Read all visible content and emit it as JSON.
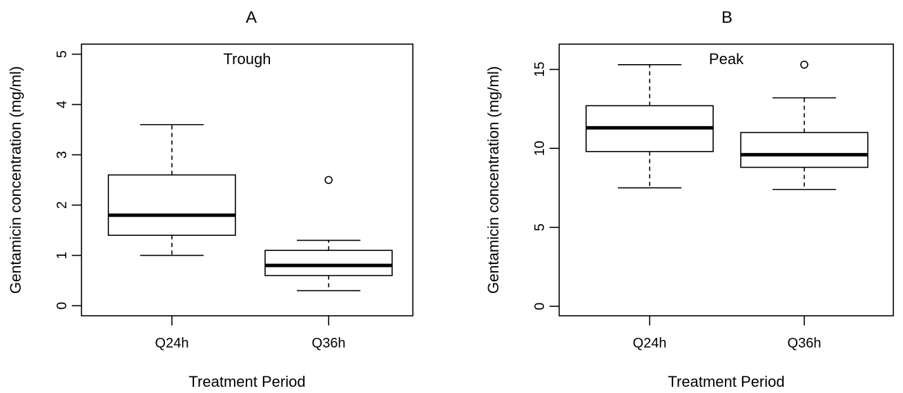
{
  "chart_data": [
    {
      "type": "box",
      "title": "A",
      "inner_label": "Trough",
      "xlabel": "Treatment Period",
      "ylabel": "Gentamicin concentration (mg/ml)",
      "ylim": [
        -0.2,
        5.2
      ],
      "yticks": [
        0,
        1,
        2,
        3,
        4,
        5
      ],
      "categories": [
        "Q24h",
        "Q36h"
      ],
      "boxes": [
        {
          "category": "Q24h",
          "whisker_low": 1.0,
          "q1": 1.4,
          "median": 1.8,
          "q3": 2.6,
          "whisker_high": 3.6,
          "outliers": []
        },
        {
          "category": "Q36h",
          "whisker_low": 0.3,
          "q1": 0.6,
          "median": 0.8,
          "q3": 1.1,
          "whisker_high": 1.3,
          "outliers": [
            2.5
          ]
        }
      ]
    },
    {
      "type": "box",
      "title": "B",
      "inner_label": "Peak",
      "xlabel": "Treatment Period",
      "ylabel": "Gentamicin concentration (mg/ml)",
      "ylim": [
        -0.6,
        16.6
      ],
      "yticks": [
        0,
        5,
        10,
        15
      ],
      "categories": [
        "Q24h",
        "Q36h"
      ],
      "boxes": [
        {
          "category": "Q24h",
          "whisker_low": 7.5,
          "q1": 9.8,
          "median": 11.3,
          "q3": 12.7,
          "whisker_high": 15.3,
          "outliers": []
        },
        {
          "category": "Q36h",
          "whisker_low": 7.4,
          "q1": 8.8,
          "median": 9.6,
          "q3": 11.0,
          "whisker_high": 13.2,
          "outliers": [
            15.3
          ]
        }
      ]
    }
  ]
}
